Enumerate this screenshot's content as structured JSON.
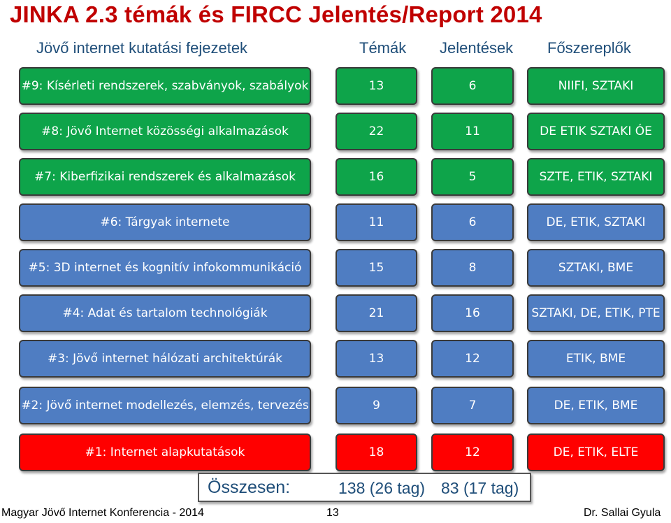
{
  "title": "JINKA 2.3 témák és FIRCC Jelentés/Report 2014",
  "headers": {
    "chapters": "Jövő internet kutatási fejezetek",
    "topics": "Témák",
    "reports": "Jelentések",
    "actors": "Főszereplők"
  },
  "rows": [
    {
      "label": "#9: Kísérleti rendszerek, szabványok, szabályok",
      "topics": "13",
      "reports": "6",
      "actors": "NIIFI, SZTAKI",
      "color": "#0ea44a"
    },
    {
      "label": "#8: Jövő Internet közösségi alkalmazások",
      "topics": "22",
      "reports": "11",
      "actors": "DE ETIK SZTAKI ÓE",
      "color": "#0ea44a"
    },
    {
      "label": "#7: Kiberfizikai rendszerek és alkalmazások",
      "topics": "16",
      "reports": "5",
      "actors": "SZTE, ETIK, SZTAKI",
      "color": "#0ea44a"
    },
    {
      "label": "#6: Tárgyak internete",
      "topics": "11",
      "reports": "6",
      "actors": "DE, ETIK, SZTAKI",
      "color": "#4f7dc2"
    },
    {
      "label": "#5: 3D internet és kognitív infokommunikáció",
      "topics": "15",
      "reports": "8",
      "actors": "SZTAKI, BME",
      "color": "#4f7dc2"
    },
    {
      "label": "#4: Adat és tartalom technológiák",
      "topics": "21",
      "reports": "16",
      "actors": "SZTAKI, DE, ETIK, PTE",
      "color": "#4f7dc2"
    },
    {
      "label": "#3: Jövő internet hálózati architektúrák",
      "topics": "13",
      "reports": "12",
      "actors": "ETIK, BME",
      "color": "#4f7dc2"
    },
    {
      "label": "#2: Jövő internet modellezés, elemzés, tervezés",
      "topics": "9",
      "reports": "7",
      "actors": "DE, ETIK, BME",
      "color": "#4f7dc2"
    },
    {
      "label": "#1: Internet alapkutatások",
      "topics": "18",
      "reports": "12",
      "actors": "DE, ETIK, ELTE",
      "color": "#ff0000"
    }
  ],
  "summary": {
    "label": "Összesen:",
    "topics_total": "138 (26 tag)",
    "reports_total": "83 (17 tag)"
  },
  "footer": {
    "conference": "Magyar Jövő Internet Konferencia - 2014",
    "page": "13",
    "author": "Dr. Sallai Gyula"
  }
}
